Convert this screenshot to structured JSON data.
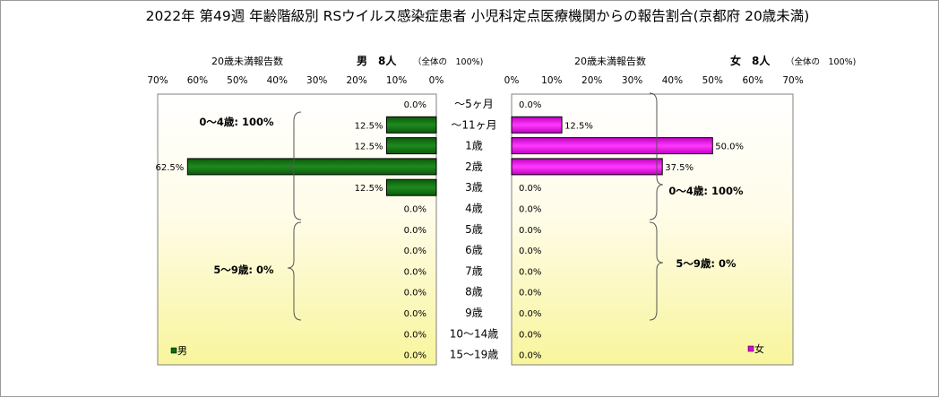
{
  "title": "2022年 第49週 年齢階級別 RSウイルス感染症患者 小児科定点医療機関からの報告割合(京都府 20歳未満)",
  "chart_data": {
    "type": "bar",
    "orientation": "horizontal-pyramid",
    "categories": [
      "～5ヶ月",
      "～11ヶ月",
      "1歳",
      "2歳",
      "3歳",
      "4歳",
      "5歳",
      "6歳",
      "7歳",
      "8歳",
      "9歳",
      "10～14歳",
      "15～19歳"
    ],
    "xlim": [
      0,
      70
    ],
    "ticks": [
      "70%",
      "60%",
      "50%",
      "40%",
      "30%",
      "20%",
      "10%",
      "0%"
    ],
    "ticks_right": [
      "0%",
      "10%",
      "20%",
      "30%",
      "40%",
      "50%",
      "60%",
      "70%"
    ],
    "series": [
      {
        "name": "男",
        "color": "#0e6b0e",
        "header_left": "20歳未満報告数",
        "header_main": "男　8人",
        "header_paren": "（全体の　100%)",
        "values": [
          0.0,
          12.5,
          12.5,
          62.5,
          12.5,
          0.0,
          0.0,
          0.0,
          0.0,
          0.0,
          0.0,
          0.0,
          0.0
        ],
        "labels": [
          "0.0%",
          "12.5%",
          "12.5%",
          "62.5%",
          "12.5%",
          "0.0%",
          "0.0%",
          "0.0%",
          "0.0%",
          "0.0%",
          "0.0%",
          "0.0%",
          "0.0%"
        ],
        "groups": [
          "0～4歳: 100%",
          "5～9歳: 0%"
        ]
      },
      {
        "name": "女",
        "color": "#e000e0",
        "header_left": "20歳未満報告数",
        "header_main": "女　8人",
        "header_paren": "（全体の　100%)",
        "values": [
          0.0,
          12.5,
          50.0,
          37.5,
          0.0,
          0.0,
          0.0,
          0.0,
          0.0,
          0.0,
          0.0,
          0.0,
          0.0
        ],
        "labels": [
          "0.0%",
          "12.5%",
          "50.0%",
          "37.5%",
          "0.0%",
          "0.0%",
          "0.0%",
          "0.0%",
          "0.0%",
          "0.0%",
          "0.0%",
          "0.0%",
          "0.0%"
        ],
        "groups": [
          "0～4歳: 100%",
          "5～9歳: 0%"
        ]
      }
    ],
    "legend": [
      "男",
      "女"
    ],
    "legend_placement": "bottom-corner of each panel"
  }
}
